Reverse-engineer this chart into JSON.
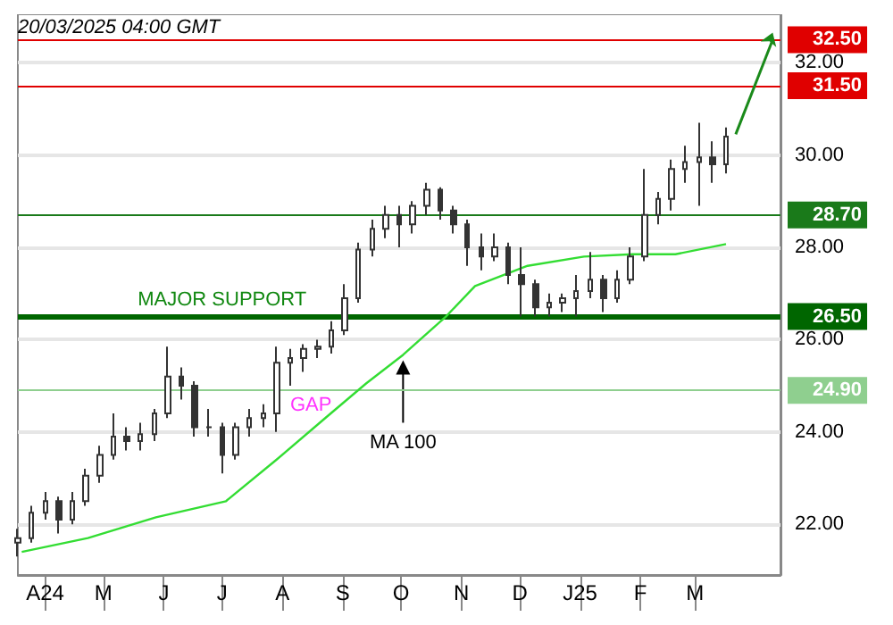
{
  "chart_data": {
    "type": "candlestick",
    "xlim": [
      "2024-03-18",
      "2025-04-14"
    ],
    "xticks": [
      {
        "value": "2024-04-01",
        "label": "A24"
      },
      {
        "value": "2024-05-01",
        "label": "M"
      },
      {
        "value": "2024-06-01",
        "label": "J"
      },
      {
        "value": "2024-07-01",
        "label": "J"
      },
      {
        "value": "2024-08-01",
        "label": "A"
      },
      {
        "value": "2024-09-01",
        "label": "S"
      },
      {
        "value": "2024-10-01",
        "label": "O"
      },
      {
        "value": "2024-11-01",
        "label": "N"
      },
      {
        "value": "2024-12-01",
        "label": "D"
      },
      {
        "value": "2025-01-01",
        "label": "J25"
      },
      {
        "value": "2025-02-01",
        "label": "F"
      },
      {
        "value": "2025-03-01",
        "label": "M"
      }
    ],
    "ylim": [
      20.9,
      33.05
    ],
    "yticks": [
      {
        "value": 22,
        "label": "22.00"
      },
      {
        "value": 24,
        "label": "24.00"
      },
      {
        "value": 26,
        "label": "26.00"
      },
      {
        "value": 28,
        "label": "28.00"
      },
      {
        "value": 30,
        "label": "30.00"
      },
      {
        "value": 32,
        "label": "32.00"
      }
    ],
    "grid": "y",
    "legend": false,
    "series": [
      {
        "color": "#333333",
        "x": [
          "2024-03-18",
          "2024-03-25",
          "2024-04-01",
          "2024-04-08",
          "2024-04-15",
          "2024-04-22",
          "2024-04-29",
          "2024-05-06",
          "2024-05-13",
          "2024-05-20",
          "2024-05-27",
          "2024-06-03",
          "2024-06-10",
          "2024-06-17",
          "2024-06-24",
          "2024-07-01",
          "2024-07-08",
          "2024-07-15",
          "2024-07-22",
          "2024-07-29",
          "2024-08-05",
          "2024-08-12",
          "2024-08-19",
          "2024-08-26",
          "2024-09-02",
          "2024-09-09",
          "2024-09-16",
          "2024-09-23",
          "2024-09-30",
          "2024-10-07",
          "2024-10-14",
          "2024-10-21",
          "2024-10-28",
          "2024-11-04",
          "2024-11-11",
          "2024-11-18",
          "2024-11-25",
          "2024-12-02",
          "2024-12-09",
          "2024-12-16",
          "2024-12-23",
          "2024-12-30",
          "2025-01-06",
          "2025-01-13",
          "2025-01-20",
          "2025-01-27",
          "2025-02-03",
          "2025-02-10",
          "2025-02-17",
          "2025-02-24",
          "2025-03-03",
          "2025-03-10",
          "2025-03-17"
        ],
        "ohlc": [
          [
            21.6,
            21.9,
            21.3,
            21.7
          ],
          [
            21.7,
            22.4,
            21.6,
            22.25
          ],
          [
            22.25,
            22.7,
            22.1,
            22.5
          ],
          [
            22.5,
            22.6,
            21.8,
            22.1
          ],
          [
            22.1,
            22.7,
            22.0,
            22.5
          ],
          [
            22.5,
            23.2,
            22.4,
            23.05
          ],
          [
            23.05,
            23.7,
            22.9,
            23.5
          ],
          [
            23.5,
            24.4,
            23.4,
            23.9
          ],
          [
            23.9,
            24.1,
            23.6,
            23.8
          ],
          [
            23.8,
            24.2,
            23.6,
            23.95
          ],
          [
            23.95,
            24.5,
            23.8,
            24.4
          ],
          [
            24.4,
            25.85,
            24.3,
            25.2
          ],
          [
            25.2,
            25.4,
            24.7,
            25.0
          ],
          [
            25.0,
            25.1,
            23.9,
            24.1
          ],
          [
            24.1,
            24.5,
            23.9,
            24.1
          ],
          [
            24.1,
            24.2,
            23.1,
            23.5
          ],
          [
            23.5,
            24.2,
            23.4,
            24.1
          ],
          [
            24.1,
            24.5,
            23.9,
            24.3
          ],
          [
            24.3,
            24.6,
            24.1,
            24.4
          ],
          [
            24.4,
            25.85,
            24.0,
            25.5
          ],
          [
            25.5,
            25.8,
            25.0,
            25.6
          ],
          [
            25.6,
            25.9,
            25.3,
            25.8
          ],
          [
            25.8,
            26.0,
            25.6,
            25.85
          ],
          [
            25.85,
            26.4,
            25.7,
            26.2
          ],
          [
            26.2,
            27.2,
            26.1,
            26.9
          ],
          [
            26.9,
            28.1,
            26.8,
            27.95
          ],
          [
            27.95,
            28.6,
            27.8,
            28.4
          ],
          [
            28.4,
            28.9,
            28.2,
            28.7
          ],
          [
            28.7,
            28.9,
            28.0,
            28.5
          ],
          [
            28.5,
            29.0,
            28.3,
            28.9
          ],
          [
            28.9,
            29.4,
            28.7,
            29.25
          ],
          [
            29.25,
            29.3,
            28.6,
            28.8
          ],
          [
            28.8,
            28.9,
            28.3,
            28.5
          ],
          [
            28.5,
            28.6,
            27.6,
            28.0
          ],
          [
            28.0,
            28.3,
            27.5,
            27.8
          ],
          [
            27.8,
            28.3,
            27.7,
            28.0
          ],
          [
            28.0,
            28.1,
            27.2,
            27.4
          ],
          [
            27.4,
            28.0,
            26.5,
            27.2
          ],
          [
            27.2,
            27.3,
            26.5,
            26.7
          ],
          [
            26.7,
            27.0,
            26.5,
            26.8
          ],
          [
            26.8,
            27.0,
            26.6,
            26.9
          ],
          [
            26.9,
            27.4,
            26.5,
            27.05
          ],
          [
            27.05,
            27.9,
            26.9,
            27.3
          ],
          [
            27.3,
            27.4,
            26.6,
            26.9
          ],
          [
            26.9,
            27.5,
            26.8,
            27.3
          ],
          [
            27.3,
            28.0,
            27.2,
            27.8
          ],
          [
            27.8,
            29.7,
            27.7,
            28.7
          ],
          [
            28.7,
            29.2,
            28.5,
            29.05
          ],
          [
            29.05,
            29.9,
            28.8,
            29.7
          ],
          [
            29.7,
            30.2,
            29.4,
            29.85
          ],
          [
            29.85,
            30.7,
            28.9,
            29.95
          ],
          [
            29.95,
            30.3,
            29.4,
            29.8
          ],
          [
            29.8,
            30.6,
            29.6,
            30.4
          ]
        ]
      },
      {
        "type": "line",
        "name": "MA 100",
        "color": "#33dd33",
        "x": [
          "2024-03-20",
          "2024-04-23",
          "2024-05-28",
          "2024-07-03",
          "2024-07-29",
          "2024-08-23",
          "2024-09-13",
          "2024-10-02",
          "2024-10-24",
          "2024-11-08",
          "2024-12-05",
          "2025-01-03",
          "2025-01-28",
          "2025-02-19",
          "2025-03-17"
        ],
        "values": [
          21.4,
          21.7,
          22.15,
          22.5,
          23.4,
          24.3,
          25.05,
          25.67,
          26.5,
          27.16,
          27.6,
          27.8,
          27.85,
          27.85,
          28.07
        ]
      },
      {
        "type": "line",
        "color": "#1a8a1a",
        "x": [
          "2025-03-22",
          "2025-04-10"
        ],
        "values": [
          30.45,
          32.5
        ]
      }
    ],
    "ref_lines": [
      {
        "axis": "y",
        "value": 32.5,
        "label": "32.50",
        "color": "#e00000"
      },
      {
        "axis": "y",
        "value": 31.5,
        "label": "31.50",
        "color": "#e00000"
      },
      {
        "axis": "y",
        "value": 28.7,
        "label": "28.70",
        "color": "#1a7a1a"
      },
      {
        "axis": "y",
        "value": 26.5,
        "label": "26.50",
        "color": "#006600"
      },
      {
        "axis": "y",
        "value": 24.9,
        "label": "24.90",
        "color": "#8fcf8f"
      }
    ],
    "annotations": [
      "20/03/2025 04:00 GMT",
      {
        "text": "MAJOR SUPPORT",
        "x": "2024-07-01",
        "y": 26.5
      },
      {
        "text": "GAP",
        "x": "2024-08-05",
        "y": 24.9
      }
    ]
  }
}
